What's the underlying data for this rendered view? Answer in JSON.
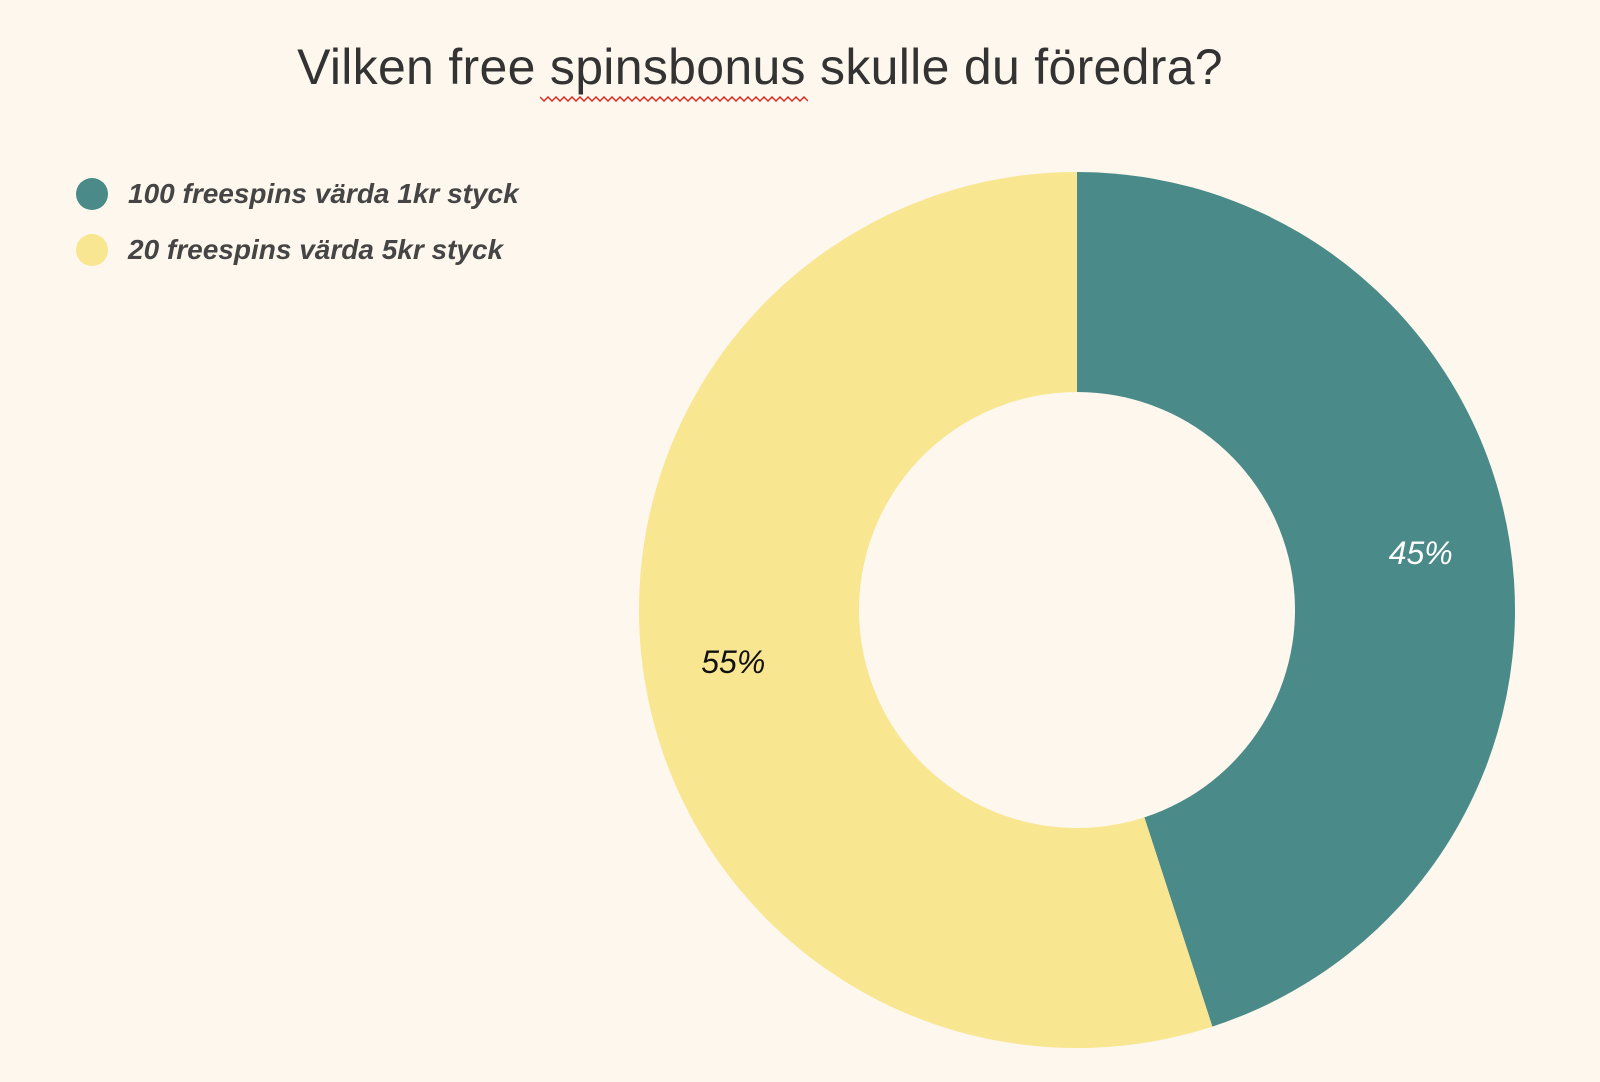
{
  "chart_data": {
    "type": "pie",
    "variant": "donut",
    "title": "Vilken free spinsbonus skulle du föredra?",
    "legend_position": "top-left",
    "slices": [
      {
        "label": "100 freespins värda 1kr styck",
        "value": 45,
        "display": "45%",
        "color": "#4a8a89",
        "text_color": "#ffffff"
      },
      {
        "label": "20 freespins värda 5kr styck",
        "value": 55,
        "display": "55%",
        "color": "#f8e690",
        "text_color": "#111111"
      }
    ]
  },
  "colors": {
    "background": "#fdf7ee",
    "title_text": "#333333",
    "legend_text": "#454545",
    "spellcheck_underline": "#d93025"
  }
}
